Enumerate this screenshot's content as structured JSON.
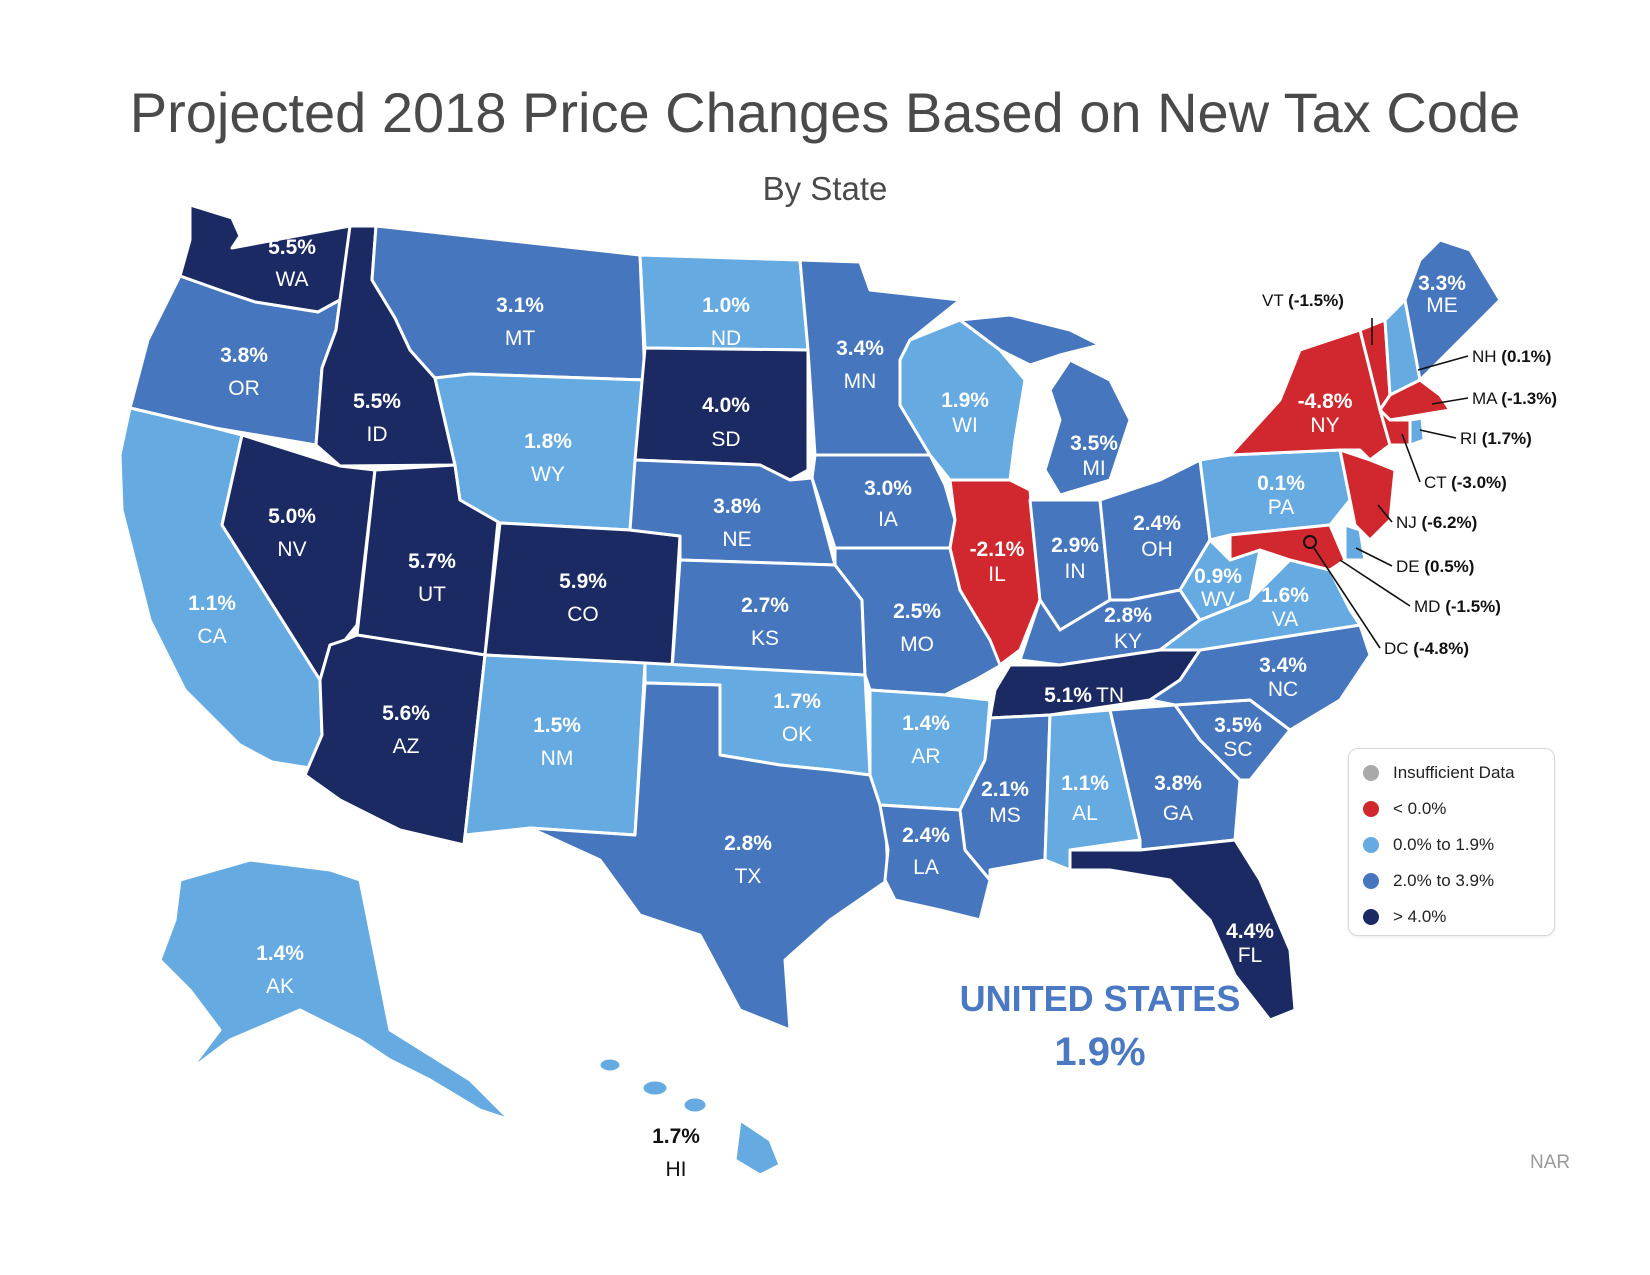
{
  "title": "Projected 2018 Price Changes Based on New Tax Code",
  "subtitle": "By State",
  "colors": {
    "insufficient": "#a9a9a9",
    "negative": "#d0282e",
    "low": "#66aae2",
    "mid": "#4676bd",
    "high": "#1b2a63"
  },
  "legend": [
    {
      "label": "Insufficient Data",
      "color": "#a9a9a9"
    },
    {
      "label": "< 0.0%",
      "color": "#d0282e"
    },
    {
      "label": "0.0% to 1.9%",
      "color": "#66aae2"
    },
    {
      "label": "2.0% to 3.9%",
      "color": "#4676bd"
    },
    {
      "label": "> 4.0%",
      "color": "#1b2a63"
    }
  ],
  "states": {
    "WA": {
      "value": "5.5%",
      "abbr": "WA"
    },
    "OR": {
      "value": "3.8%",
      "abbr": "OR"
    },
    "CA": {
      "value": "1.1%",
      "abbr": "CA"
    },
    "ID": {
      "value": "5.5%",
      "abbr": "ID"
    },
    "NV": {
      "value": "5.0%",
      "abbr": "NV"
    },
    "UT": {
      "value": "5.7%",
      "abbr": "UT"
    },
    "AZ": {
      "value": "5.6%",
      "abbr": "AZ"
    },
    "MT": {
      "value": "3.1%",
      "abbr": "MT"
    },
    "WY": {
      "value": "1.8%",
      "abbr": "WY"
    },
    "CO": {
      "value": "5.9%",
      "abbr": "CO"
    },
    "NM": {
      "value": "1.5%",
      "abbr": "NM"
    },
    "ND": {
      "value": "1.0%",
      "abbr": "ND"
    },
    "SD": {
      "value": "4.0%",
      "abbr": "SD"
    },
    "NE": {
      "value": "3.8%",
      "abbr": "NE"
    },
    "KS": {
      "value": "2.7%",
      "abbr": "KS"
    },
    "OK": {
      "value": "1.7%",
      "abbr": "OK"
    },
    "TX": {
      "value": "2.8%",
      "abbr": "TX"
    },
    "MN": {
      "value": "3.4%",
      "abbr": "MN"
    },
    "IA": {
      "value": "3.0%",
      "abbr": "IA"
    },
    "MO": {
      "value": "2.5%",
      "abbr": "MO"
    },
    "AR": {
      "value": "1.4%",
      "abbr": "AR"
    },
    "LA": {
      "value": "2.4%",
      "abbr": "LA"
    },
    "WI": {
      "value": "1.9%",
      "abbr": "WI"
    },
    "IL": {
      "value": "-2.1%",
      "abbr": "IL"
    },
    "MI": {
      "value": "3.5%",
      "abbr": "MI"
    },
    "IN": {
      "value": "2.9%",
      "abbr": "IN"
    },
    "OH": {
      "value": "2.4%",
      "abbr": "OH"
    },
    "KY": {
      "value": "2.8%",
      "abbr": "KY"
    },
    "TN": {
      "value": "5.1%",
      "abbr": "TN"
    },
    "MS": {
      "value": "2.1%",
      "abbr": "MS"
    },
    "AL": {
      "value": "1.1%",
      "abbr": "AL"
    },
    "GA": {
      "value": "3.8%",
      "abbr": "GA"
    },
    "FL": {
      "value": "4.4%",
      "abbr": "FL"
    },
    "SC": {
      "value": "3.5%",
      "abbr": "SC"
    },
    "NC": {
      "value": "3.4%",
      "abbr": "NC"
    },
    "VA": {
      "value": "1.6%",
      "abbr": "VA"
    },
    "WV": {
      "value": "0.9%",
      "abbr": "WV"
    },
    "PA": {
      "value": "0.1%",
      "abbr": "PA"
    },
    "NY": {
      "value": "-4.8%",
      "abbr": "NY"
    },
    "ME": {
      "value": "3.3%",
      "abbr": "ME"
    },
    "AK": {
      "value": "1.4%",
      "abbr": "AK"
    },
    "HI": {
      "value": "1.7%",
      "abbr": "HI"
    }
  },
  "callouts": {
    "VT": {
      "abbr": "VT",
      "value": "(-1.5%)"
    },
    "NH": {
      "abbr": "NH",
      "value": "(0.1%)"
    },
    "MA": {
      "abbr": "MA",
      "value": "(-1.3%)"
    },
    "RI": {
      "abbr": "RI",
      "value": "(1.7%)"
    },
    "CT": {
      "abbr": "CT",
      "value": "(-3.0%)"
    },
    "NJ": {
      "abbr": "NJ",
      "value": "(-6.2%)"
    },
    "DE": {
      "abbr": "DE",
      "value": "(0.5%)"
    },
    "MD": {
      "abbr": "MD",
      "value": "(-1.5%)"
    },
    "DC": {
      "abbr": "DC",
      "value": "(-4.8%)"
    }
  },
  "national": {
    "name": "UNITED STATES",
    "value": "1.9%"
  },
  "source": "NAR"
}
